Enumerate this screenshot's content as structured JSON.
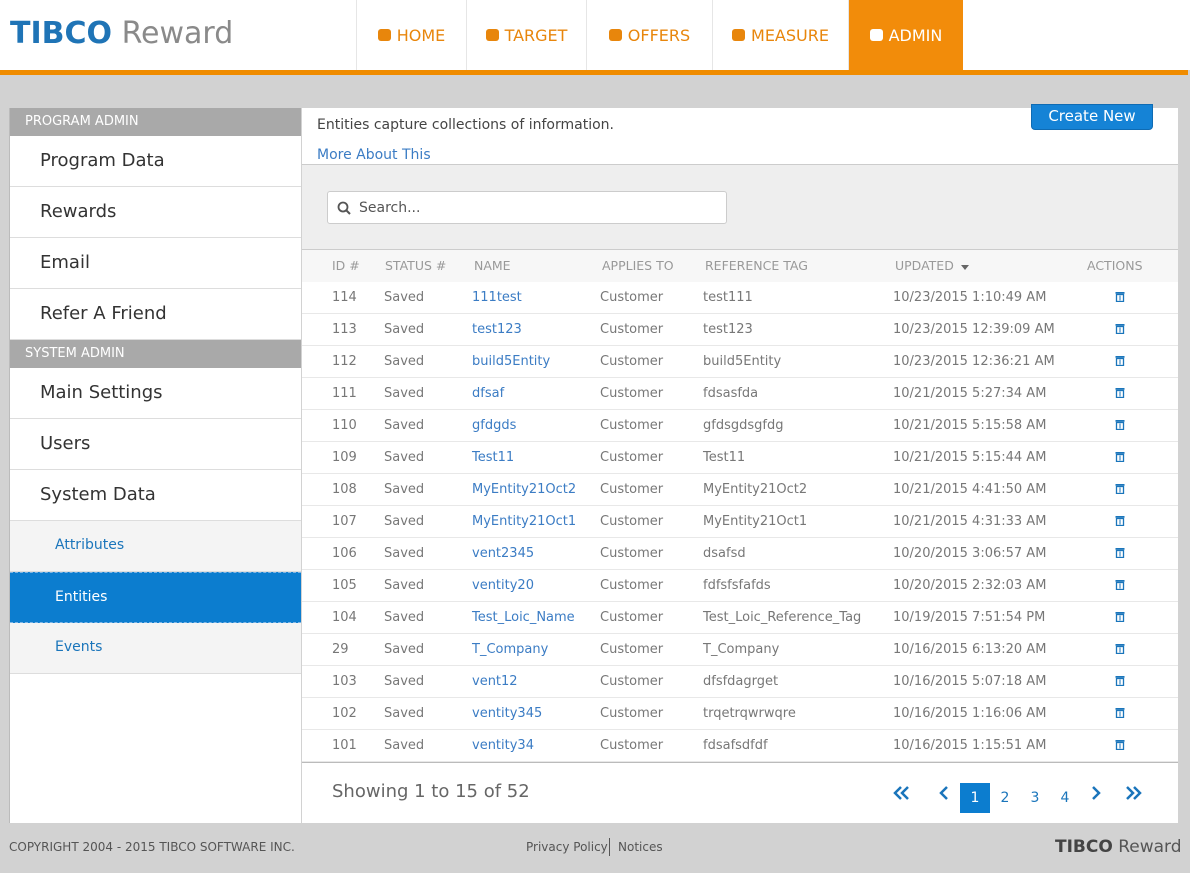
{
  "header": {
    "logo": {
      "brand": "TIBCO",
      "product": "Reward"
    },
    "nav": [
      "HOME",
      "TARGET",
      "OFFERS",
      "MEASURE",
      "ADMIN"
    ]
  },
  "sidebar": {
    "sections": [
      {
        "title": "PROGRAM ADMIN",
        "items": [
          "Program Data",
          "Rewards",
          "Email",
          "Refer A Friend"
        ]
      },
      {
        "title": "SYSTEM ADMIN",
        "items": [
          "Main Settings",
          "Users",
          "System Data"
        ],
        "subitems": [
          "Attributes",
          "Entities",
          "Events"
        ]
      }
    ]
  },
  "main": {
    "description": "Entities capture collections of information.",
    "link": "More About This",
    "button": "Create New",
    "search_placeholder": "Search...",
    "table": {
      "columns": [
        "ID #",
        "STATUS #",
        "NAME",
        "APPLIES TO",
        "REFERENCE TAG",
        "UPDATED",
        "ACTIONS"
      ],
      "rows": [
        [
          114,
          "Saved",
          "111test",
          "Customer",
          "test111",
          "10/23/2015 1:10:49 AM"
        ],
        [
          113,
          "Saved",
          "test123",
          "Customer",
          "test123",
          "10/23/2015 12:39:09 AM"
        ],
        [
          112,
          "Saved",
          "build5Entity",
          "Customer",
          "build5Entity",
          "10/23/2015 12:36:21 AM"
        ],
        [
          111,
          "Saved",
          "dfsaf",
          "Customer",
          "fdsasfda",
          "10/21/2015 5:27:34 AM"
        ],
        [
          110,
          "Saved",
          "gfdgds",
          "Customer",
          "gfdsgdsgfdg",
          "10/21/2015 5:15:58 AM"
        ],
        [
          109,
          "Saved",
          "Test11",
          "Customer",
          "Test11",
          "10/21/2015 5:15:44 AM"
        ],
        [
          108,
          "Saved",
          "MyEntity21Oct2",
          "Customer",
          "MyEntity21Oct2",
          "10/21/2015 4:41:50 AM"
        ],
        [
          107,
          "Saved",
          "MyEntity21Oct1",
          "Customer",
          "MyEntity21Oct1",
          "10/21/2015 4:31:33 AM"
        ],
        [
          106,
          "Saved",
          "vent2345",
          "Customer",
          "dsafsd",
          "10/20/2015 3:06:57 AM"
        ],
        [
          105,
          "Saved",
          "ventity20",
          "Customer",
          "fdfsfsfafds",
          "10/20/2015 2:32:03 AM"
        ],
        [
          104,
          "Saved",
          "Test_Loic_Name",
          "Customer",
          "Test_Loic_Reference_Tag",
          "10/19/2015 7:51:54 PM"
        ],
        [
          29,
          "Saved",
          "T_Company",
          "Customer",
          "T_Company",
          "10/16/2015 6:13:20 AM"
        ],
        [
          103,
          "Saved",
          "vent12",
          "Customer",
          "dfsfdagrget",
          "10/16/2015 5:07:18 AM"
        ],
        [
          102,
          "Saved",
          "ventity345",
          "Customer",
          "trqetrqwrwqre",
          "10/16/2015 1:16:06 AM"
        ],
        [
          101,
          "Saved",
          "ventity34",
          "Customer",
          "fdsafsdfdf",
          "10/16/2015 1:15:51 AM"
        ]
      ]
    },
    "summary": "Showing 1 to 15 of 52",
    "pages": [
      1,
      2,
      3,
      4
    ]
  },
  "footer": {
    "copyright": "COPYRIGHT 2004 - 2015 TIBCO SOFTWARE INC.",
    "links": [
      "Privacy Policy",
      "Notices"
    ],
    "logo": {
      "brand": "TIBCO",
      "product": "Reward"
    }
  }
}
